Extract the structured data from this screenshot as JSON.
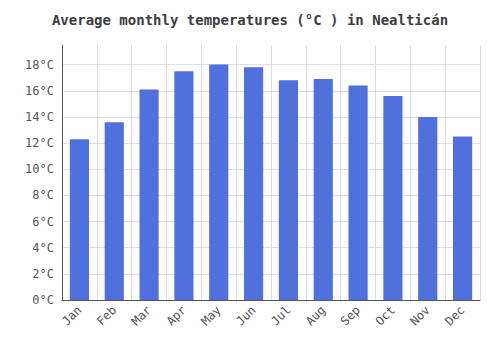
{
  "chart_data": {
    "type": "bar",
    "title": "Average monthly temperatures (°C ) in Nealticán",
    "categories": [
      "Jan",
      "Feb",
      "Mar",
      "Apr",
      "May",
      "Jun",
      "Jul",
      "Aug",
      "Sep",
      "Oct",
      "Nov",
      "Dec"
    ],
    "values": [
      12.3,
      13.6,
      16.1,
      17.5,
      18.0,
      17.8,
      16.8,
      16.9,
      16.4,
      15.6,
      14.0,
      12.5
    ],
    "ylim": [
      0,
      19.5
    ],
    "yticks": [
      {
        "value": 0,
        "label": "0°C"
      },
      {
        "value": 2,
        "label": "2°C"
      },
      {
        "value": 4,
        "label": "4°C"
      },
      {
        "value": 6,
        "label": "6°C"
      },
      {
        "value": 8,
        "label": "8°C"
      },
      {
        "value": 10,
        "label": "10°C"
      },
      {
        "value": 12,
        "label": "12°C"
      },
      {
        "value": 14,
        "label": "14°C"
      },
      {
        "value": 16,
        "label": "16°C"
      },
      {
        "value": 18,
        "label": "18°C"
      }
    ],
    "grid": true
  }
}
